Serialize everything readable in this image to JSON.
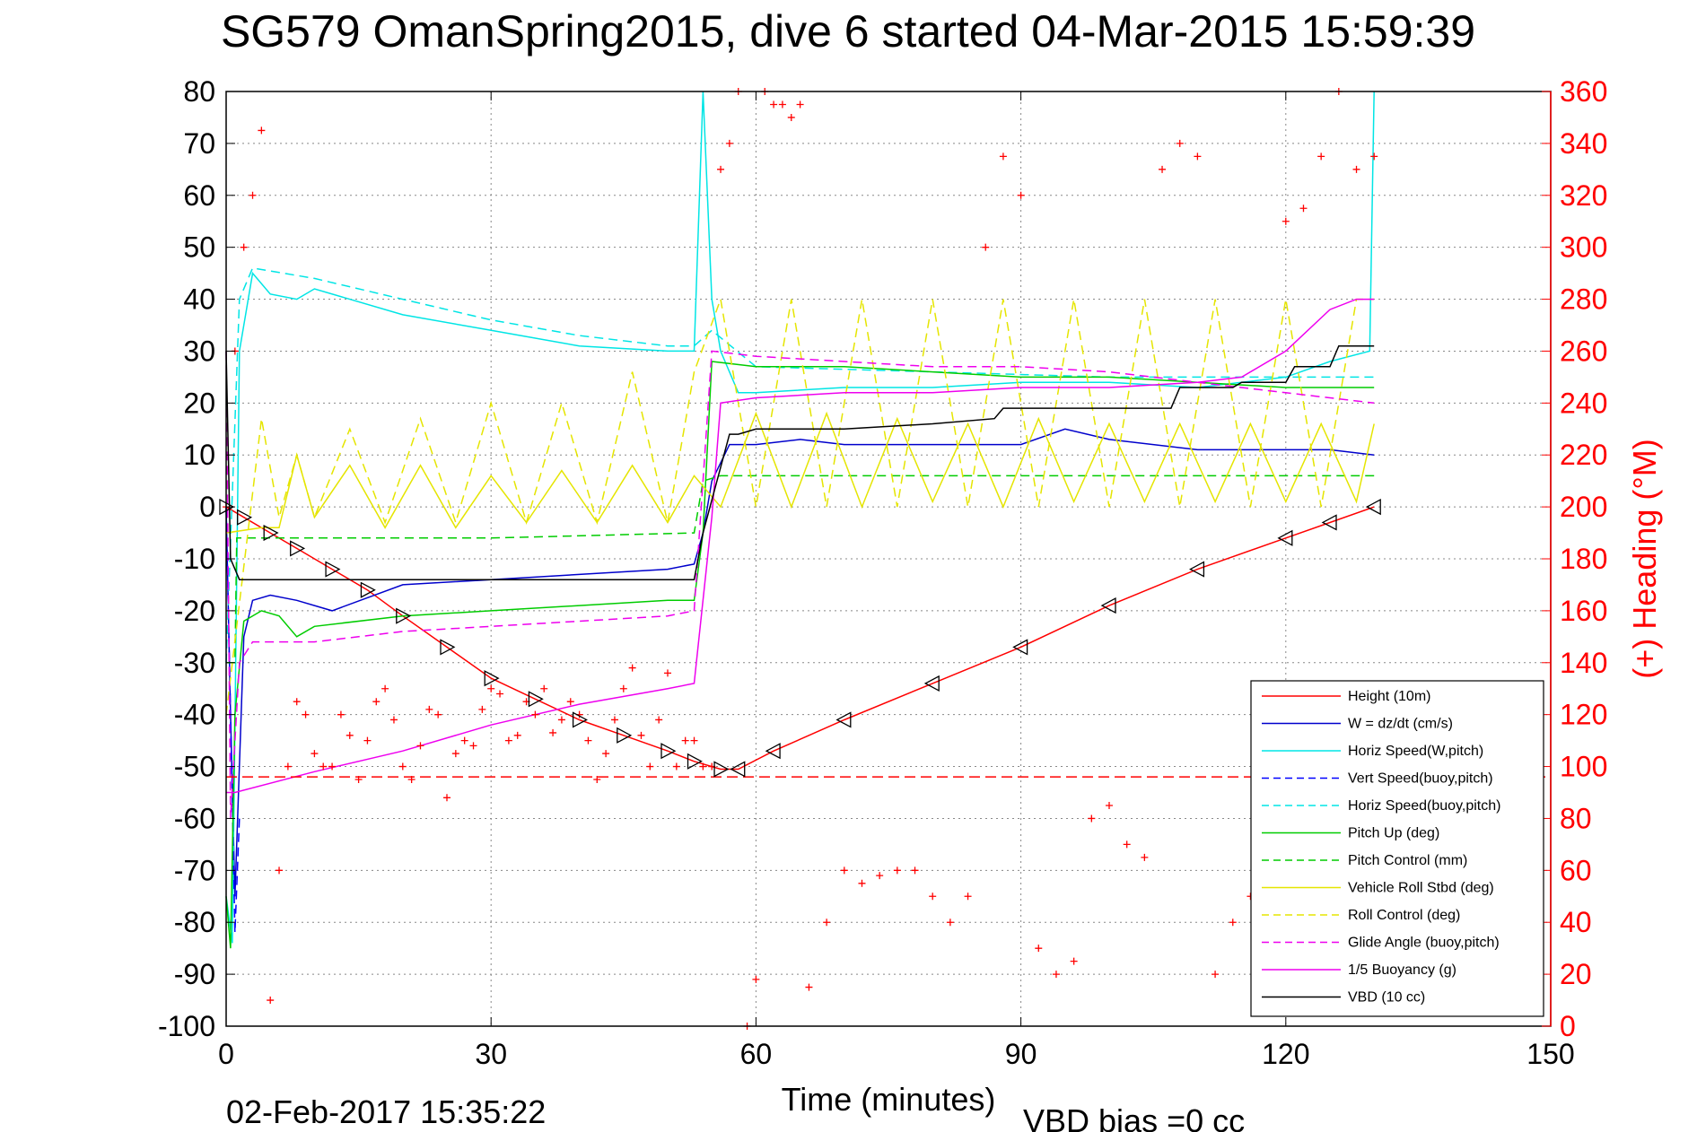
{
  "chart_data": {
    "type": "line",
    "title": "SG579 OmanSpring2015, dive 6 started 04-Mar-2015 15:59:39",
    "xlabel": "Time (minutes)",
    "ylabel_right": "(+) Heading (°M)",
    "xlim": [
      0,
      150
    ],
    "ylim": [
      -100,
      80
    ],
    "ylim_right": [
      0,
      360
    ],
    "x_ticks": [
      "0",
      "30",
      "60",
      "90",
      "120",
      "150"
    ],
    "y_ticks": [
      "80",
      "70",
      "60",
      "50",
      "40",
      "30",
      "20",
      "10",
      "0",
      "-10",
      "-20",
      "-30",
      "-40",
      "-50",
      "-60",
      "-70",
      "-80",
      "-90",
      "-100"
    ],
    "y_ticks_right": [
      "360",
      "340",
      "320",
      "300",
      "280",
      "260",
      "240",
      "220",
      "200",
      "180",
      "160",
      "140",
      "120",
      "100",
      "80",
      "60",
      "40",
      "20",
      "0"
    ],
    "grid": true,
    "legend_position": "bottom-right",
    "footer_left": "02-Feb-2017 15:35:22",
    "footer_right": "VBD bias =0 cc",
    "series": [
      {
        "name": "Height (10m)",
        "color": "#ff0000",
        "style": "solid",
        "marker": "triangle",
        "x": [
          0,
          2,
          5,
          8,
          12,
          16,
          20,
          25,
          30,
          35,
          40,
          45,
          50,
          53,
          56,
          58,
          62,
          70,
          80,
          90,
          100,
          110,
          120,
          125,
          130
        ],
        "y": [
          0,
          -2,
          -5,
          -8,
          -12,
          -16,
          -21,
          -27,
          -33,
          -37,
          -41,
          -44,
          -47,
          -49,
          -50.5,
          -50.5,
          -47,
          -41,
          -34,
          -27,
          -19,
          -12,
          -6,
          -3,
          0
        ]
      },
      {
        "name": "W = dz/dt (cm/s)",
        "color": "#0000cc",
        "style": "solid",
        "x": [
          0,
          0.5,
          1,
          2,
          3,
          5,
          8,
          12,
          20,
          30,
          40,
          50,
          53,
          54,
          55,
          57,
          60,
          65,
          70,
          80,
          90,
          95,
          100,
          110,
          120,
          125,
          130
        ],
        "y": [
          0,
          -40,
          -75,
          -25,
          -18,
          -17,
          -18,
          -20,
          -15,
          -14,
          -13,
          -12,
          -11,
          -5,
          5,
          12,
          12,
          13,
          12,
          12,
          12,
          15,
          13,
          11,
          11,
          11,
          10
        ]
      },
      {
        "name": "Horiz Speed(W,pitch)",
        "color": "#00e5e5",
        "style": "solid",
        "x": [
          0,
          0.7,
          1.5,
          3,
          5,
          8,
          10,
          20,
          30,
          40,
          50,
          53,
          54,
          55,
          56,
          58,
          60,
          70,
          80,
          90,
          100,
          110,
          120,
          125,
          129.5,
          130
        ],
        "y": [
          -75,
          -84,
          30,
          45,
          41,
          40,
          42,
          37,
          34,
          31,
          30,
          30,
          80,
          40,
          30,
          22,
          22,
          23,
          23,
          24,
          24,
          23,
          25,
          28,
          30,
          80
        ]
      },
      {
        "name": "Vert Speed(buoy,pitch)",
        "color": "#0000ff",
        "style": "dashed",
        "x": [
          0,
          0.5,
          1,
          1.5
        ],
        "y": [
          0,
          -40,
          -82,
          -60
        ]
      },
      {
        "name": "Horiz Speed(buoy,pitch)",
        "color": "#00e5e5",
        "style": "dashed",
        "x": [
          0,
          1.5,
          3,
          10,
          20,
          30,
          40,
          50,
          53,
          55,
          60,
          80,
          100,
          120,
          130
        ],
        "y": [
          -30,
          40,
          46,
          44,
          40,
          36,
          33,
          31,
          31,
          34,
          27,
          26,
          25,
          25,
          25
        ]
      },
      {
        "name": "Pitch Up (deg)",
        "color": "#00cc00",
        "style": "solid",
        "x": [
          0,
          0.5,
          1,
          2,
          4,
          6,
          8,
          10,
          20,
          30,
          40,
          50,
          53,
          54,
          55,
          60,
          70,
          80,
          90,
          100,
          110,
          120,
          130
        ],
        "y": [
          -75,
          -85,
          -40,
          -22,
          -20,
          -21,
          -25,
          -23,
          -21,
          -20,
          -19,
          -18,
          -18,
          -5,
          28,
          27,
          27,
          26,
          25,
          25,
          24,
          23,
          23
        ]
      },
      {
        "name": "Pitch Control (mm)",
        "color": "#00cc00",
        "style": "dashed",
        "x": [
          0,
          1,
          1.2,
          10,
          30,
          53,
          54,
          56,
          130
        ],
        "y": [
          -30,
          -30,
          -6,
          -6,
          -6,
          -5,
          5,
          6,
          6
        ]
      },
      {
        "name": "Vehicle Roll Stbd (deg)",
        "color": "#e5e500",
        "style": "solid",
        "x": [
          0,
          4,
          6,
          8,
          10,
          14,
          18,
          22,
          26,
          30,
          34,
          38,
          42,
          46,
          50,
          53,
          56,
          60,
          64,
          68,
          72,
          76,
          80,
          84,
          88,
          92,
          96,
          100,
          104,
          108,
          112,
          116,
          120,
          124,
          128,
          130
        ],
        "y": [
          -5,
          -4,
          -4,
          10,
          -2,
          8,
          -4,
          8,
          -4,
          6,
          -3,
          7,
          -3,
          8,
          -3,
          6,
          0,
          18,
          0,
          18,
          0,
          17,
          1,
          16,
          0,
          17,
          1,
          16,
          1,
          16,
          1,
          16,
          1,
          16,
          1,
          16
        ]
      },
      {
        "name": "Roll Control (deg)",
        "color": "#e5e500",
        "style": "dashed",
        "x": [
          0,
          4,
          6,
          8,
          10,
          14,
          18,
          22,
          26,
          30,
          34,
          38,
          42,
          46,
          50,
          53,
          56,
          60,
          64,
          68,
          72,
          76,
          80,
          84,
          88,
          92,
          96,
          100,
          104,
          108,
          112,
          116,
          120,
          124,
          128,
          130
        ],
        "y": [
          -40,
          17,
          -2,
          10,
          -2,
          15,
          -3,
          17,
          -3,
          20,
          -3,
          20,
          -3,
          26,
          -3,
          26,
          40,
          0,
          40,
          0,
          40,
          0,
          40,
          0,
          40,
          0,
          40,
          0,
          40,
          0,
          40,
          0,
          40,
          0,
          40,
          40
        ]
      },
      {
        "name": "Glide Angle (buoy,pitch)",
        "color": "#ee00ee",
        "style": "dashed",
        "x": [
          0,
          0.5,
          1.5,
          3,
          10,
          20,
          30,
          40,
          50,
          53,
          55,
          60,
          70,
          80,
          90,
          100,
          110,
          120,
          130
        ],
        "y": [
          30,
          -60,
          -30,
          -26,
          -26,
          -24,
          -23,
          -22,
          -21,
          -20,
          30,
          29,
          28,
          27,
          27,
          26,
          24,
          22,
          20
        ]
      },
      {
        "name": "1/5 Buoyancy (g)",
        "color": "#ee00ee",
        "style": "solid",
        "x": [
          0,
          1,
          10,
          20,
          30,
          40,
          50,
          53,
          55,
          56,
          60,
          70,
          80,
          90,
          100,
          110,
          115,
          120,
          125,
          128,
          130
        ],
        "y": [
          -55,
          -55,
          -51,
          -47,
          -42,
          -38,
          -35,
          -34,
          -2,
          20,
          21,
          22,
          22,
          23,
          23,
          24,
          25,
          30,
          38,
          40,
          40
        ]
      },
      {
        "name": "VBD (10 cc)",
        "color": "#000000",
        "style": "solid",
        "x": [
          0,
          0.5,
          1.5,
          10,
          30,
          53,
          54,
          57,
          58,
          60,
          70,
          80,
          87,
          88,
          100,
          107,
          108,
          114,
          115,
          120,
          121,
          125,
          126,
          130
        ],
        "y": [
          30,
          -10,
          -14,
          -14,
          -14,
          -14,
          -5,
          14,
          14,
          15,
          15,
          16,
          17,
          19,
          19,
          19,
          23,
          23,
          24,
          24,
          27,
          27,
          31,
          31
        ]
      }
    ],
    "heading_series": {
      "name": "(+) Heading",
      "color": "#ff0000",
      "marker": "+",
      "x": [
        0,
        1,
        2,
        3,
        4,
        5,
        6,
        7,
        8,
        9,
        10,
        11,
        12,
        13,
        14,
        15,
        16,
        17,
        18,
        19,
        20,
        21,
        22,
        23,
        24,
        25,
        26,
        27,
        28,
        29,
        30,
        31,
        32,
        33,
        34,
        35,
        36,
        37,
        38,
        39,
        40,
        41,
        42,
        43,
        44,
        45,
        46,
        47,
        48,
        49,
        50,
        51,
        52,
        53,
        54,
        55,
        56,
        57,
        58,
        59,
        60,
        61,
        62,
        63,
        64,
        65,
        66,
        68,
        70,
        72,
        74,
        76,
        78,
        80,
        82,
        84,
        86,
        88,
        90,
        92,
        94,
        96,
        98,
        100,
        102,
        104,
        106,
        108,
        110,
        112,
        114,
        116,
        118,
        120,
        122,
        124,
        126,
        128,
        130
      ],
      "y": [
        200,
        260,
        300,
        320,
        345,
        10,
        60,
        100,
        125,
        120,
        105,
        100,
        100,
        120,
        112,
        95,
        110,
        125,
        130,
        118,
        100,
        95,
        108,
        122,
        120,
        88,
        105,
        110,
        108,
        122,
        130,
        128,
        110,
        112,
        125,
        120,
        130,
        113,
        118,
        125,
        120,
        110,
        95,
        105,
        118,
        130,
        138,
        112,
        100,
        118,
        136,
        100,
        110,
        110,
        100,
        100,
        330,
        340,
        360,
        0,
        18,
        360,
        355,
        355,
        350,
        355,
        15,
        40,
        60,
        55,
        58,
        60,
        60,
        50,
        40,
        50,
        300,
        335,
        320,
        30,
        20,
        25,
        80,
        85,
        70,
        65,
        330,
        340,
        335,
        20,
        40,
        50,
        80,
        310,
        315,
        335,
        360,
        330,
        335
      ]
    }
  },
  "legend": [
    {
      "label": "Height (10m)",
      "color": "#ff0000",
      "style": "solid"
    },
    {
      "label": "W = dz/dt (cm/s)",
      "color": "#0000cc",
      "style": "solid"
    },
    {
      "label": "Horiz Speed(W,pitch)",
      "color": "#00e5e5",
      "style": "solid"
    },
    {
      "label": "Vert Speed(buoy,pitch)",
      "color": "#0000ff",
      "style": "dashed"
    },
    {
      "label": "Horiz Speed(buoy,pitch)",
      "color": "#00e5e5",
      "style": "dashed"
    },
    {
      "label": "Pitch Up (deg)",
      "color": "#00cc00",
      "style": "solid"
    },
    {
      "label": "Pitch Control (mm)",
      "color": "#00cc00",
      "style": "dashed"
    },
    {
      "label": "Vehicle Roll Stbd (deg)",
      "color": "#e5e500",
      "style": "solid"
    },
    {
      "label": "Roll Control (deg)",
      "color": "#e5e500",
      "style": "dashed"
    },
    {
      "label": "Glide Angle (buoy,pitch)",
      "color": "#ee00ee",
      "style": "dashed"
    },
    {
      "label": "1/5 Buoyancy (g)",
      "color": "#ee00ee",
      "style": "solid"
    },
    {
      "label": "VBD (10 cc)",
      "color": "#000000",
      "style": "solid"
    }
  ],
  "reference_line": {
    "y": -52,
    "color": "#ff0000",
    "style": "dashed"
  }
}
